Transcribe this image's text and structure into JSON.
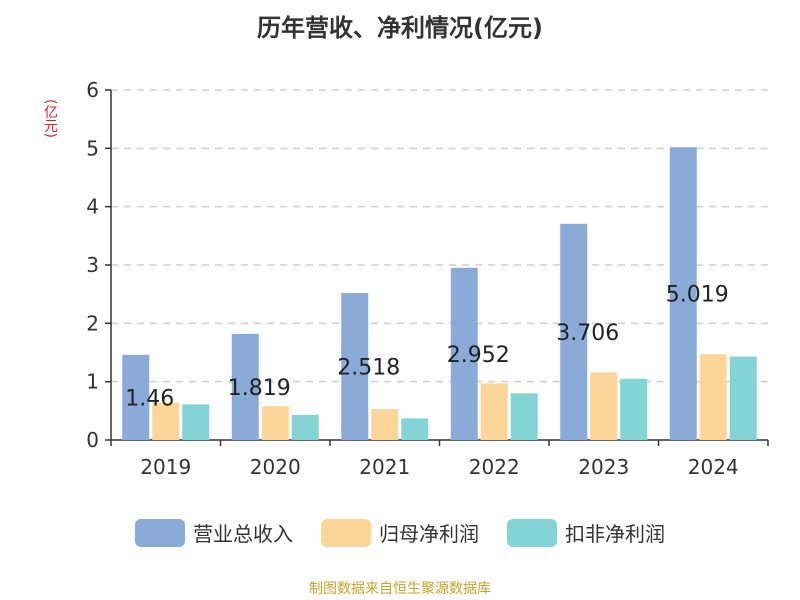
{
  "header": {
    "title": "历年营收、净利情况(亿元)",
    "unit": "(亿元)"
  },
  "footer": {
    "source": "制图数据来自恒生聚源数据库"
  },
  "colors": {
    "revenue": "#8aaad8",
    "net_profit": "#fcd699",
    "deducted_net_profit": "#84d4d6",
    "grid": "#cfcfcf",
    "axis": "#333333",
    "label": "#222222"
  },
  "chart_data": {
    "type": "bar",
    "categories": [
      "2019",
      "2020",
      "2021",
      "2022",
      "2023",
      "2024"
    ],
    "series": [
      {
        "name": "营业总收入",
        "values": [
          1.46,
          1.819,
          2.518,
          2.952,
          3.706,
          5.019
        ],
        "labels": [
          "1.46",
          "1.819",
          "2.518",
          "2.952",
          "3.706",
          "5.019"
        ]
      },
      {
        "name": "归母净利润",
        "values": [
          0.64,
          0.58,
          0.53,
          0.97,
          1.16,
          1.47
        ]
      },
      {
        "name": "扣非净利润",
        "values": [
          0.61,
          0.43,
          0.37,
          0.8,
          1.05,
          1.43
        ]
      }
    ],
    "yticks": [
      "0",
      "1",
      "2",
      "3",
      "4",
      "5",
      "6"
    ],
    "ylim": [
      0,
      6
    ],
    "grid": true,
    "legend": "bottom"
  }
}
